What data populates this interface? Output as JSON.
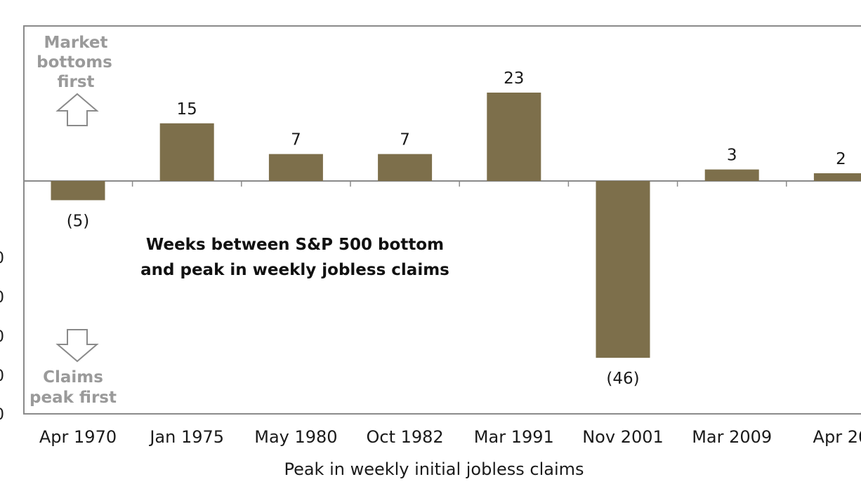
{
  "chart_data": {
    "type": "bar",
    "categories": [
      "Apr 1970",
      "Jan 1975",
      "May 1980",
      "Oct 1982",
      "Mar 1991",
      "Nov 2001",
      "Mar 2009",
      "Apr 20"
    ],
    "values": [
      -5,
      15,
      7,
      7,
      23,
      -46,
      3,
      2
    ],
    "value_labels": [
      "(5)",
      "15",
      "7",
      "7",
      "23",
      "(46)",
      "3",
      "2"
    ],
    "bar_color": "#7d6f4b",
    "xlabel": "Peak in weekly initial jobless claims",
    "ylabel": "",
    "ylim": [
      -55,
      40
    ],
    "grid": false,
    "annotations": {
      "main_line1": "Weeks between S&P 500  bottom",
      "main_line2": "and peak in weekly jobless claims",
      "up_line1": "Market",
      "up_line2": "bottoms",
      "up_line3": "first",
      "down_line1": "Claims",
      "down_line2": "peak first"
    },
    "edge_tick_fragments": [
      "0",
      "0",
      "0",
      "0",
      "0"
    ]
  }
}
